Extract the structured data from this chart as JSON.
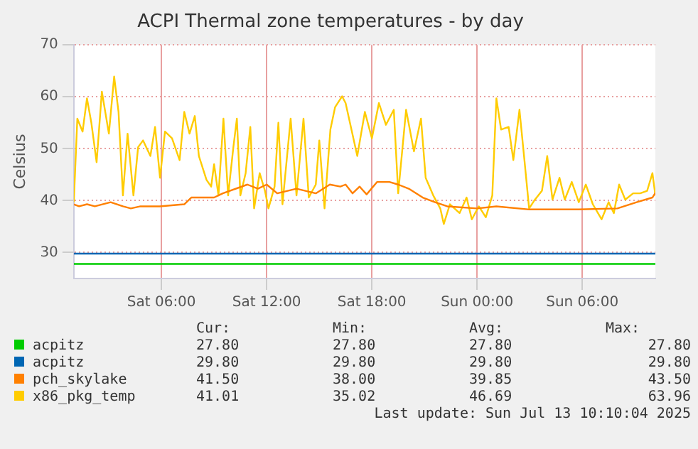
{
  "chart_data": {
    "type": "line",
    "title": "ACPI Thermal zone temperatures - by day",
    "ylabel": "Celsius",
    "xlim": [
      "2025-07-12T01:00",
      "2025-07-13T10:10"
    ],
    "xticks": [
      {
        "value": "2025-07-12T06:00",
        "label": "Sat 06:00"
      },
      {
        "value": "2025-07-12T12:00",
        "label": "Sat 12:00"
      },
      {
        "value": "2025-07-12T18:00",
        "label": "Sat 18:00"
      },
      {
        "value": "2025-07-13T00:00",
        "label": "Sun 00:00"
      },
      {
        "value": "2025-07-13T06:00",
        "label": "Sun 06:00"
      }
    ],
    "ylim": [
      25,
      70
    ],
    "yticks": [
      30,
      40,
      50,
      60,
      70
    ],
    "grid": true,
    "legend": "bottom",
    "marker": "none",
    "line_style": "solid",
    "series": [
      {
        "name": "acpitz",
        "color": "#00cc00",
        "x": [
          "2025-07-12T01:00",
          "2025-07-13T10:10"
        ],
        "values": [
          27.8,
          27.8
        ]
      },
      {
        "name": "acpitz",
        "color": "#0066b3",
        "x": [
          "2025-07-12T01:00",
          "2025-07-13T10:10"
        ],
        "values": [
          29.8,
          29.8
        ]
      },
      {
        "name": "pch_skylake",
        "color": "#ff8000",
        "x": [
          "2025-07-12T01:00",
          "2025-07-12T01:18",
          "2025-07-12T01:45",
          "2025-07-12T02:12",
          "2025-07-12T03:06",
          "2025-07-12T03:48",
          "2025-07-12T04:15",
          "2025-07-12T04:48",
          "2025-07-12T05:54",
          "2025-07-12T07:18",
          "2025-07-12T07:42",
          "2025-07-12T09:00",
          "2025-07-12T09:30",
          "2025-07-12T10:54",
          "2025-07-12T11:30",
          "2025-07-12T12:00",
          "2025-07-12T12:36",
          "2025-07-12T13:42",
          "2025-07-12T14:48",
          "2025-07-12T15:36",
          "2025-07-12T16:12",
          "2025-07-12T16:30",
          "2025-07-12T16:54",
          "2025-07-12T17:18",
          "2025-07-12T17:42",
          "2025-07-12T18:18",
          "2025-07-12T19:00",
          "2025-07-12T19:30",
          "2025-07-12T20:06",
          "2025-07-12T20:54",
          "2025-07-12T21:36",
          "2025-07-12T22:18",
          "2025-07-13T00:00",
          "2025-07-13T01:06",
          "2025-07-13T03:00",
          "2025-07-13T05:48",
          "2025-07-13T08:00",
          "2025-07-13T09:06",
          "2025-07-13T10:00",
          "2025-07-13T10:10"
        ],
        "values": [
          39.3,
          38.9,
          39.3,
          38.9,
          39.7,
          38.9,
          38.5,
          38.9,
          38.9,
          39.3,
          40.6,
          40.6,
          41.4,
          43.1,
          42.3,
          43.1,
          41.4,
          42.3,
          41.4,
          43.1,
          42.7,
          43.1,
          41.4,
          42.7,
          41.2,
          43.6,
          43.6,
          43.1,
          42.3,
          40.6,
          39.7,
          38.9,
          38.5,
          38.9,
          38.3,
          38.3,
          38.5,
          39.7,
          40.6,
          41.5
        ]
      },
      {
        "name": "x86_pkg_temp",
        "color": "#ffcc00",
        "x": [
          "2025-07-12T01:00",
          "2025-07-12T01:12",
          "2025-07-12T01:30",
          "2025-07-12T01:45",
          "2025-07-12T02:00",
          "2025-07-12T02:18",
          "2025-07-12T02:36",
          "2025-07-12T03:00",
          "2025-07-12T03:18",
          "2025-07-12T03:33",
          "2025-07-12T03:48",
          "2025-07-12T04:04",
          "2025-07-12T04:24",
          "2025-07-12T04:40",
          "2025-07-12T04:57",
          "2025-07-12T05:22",
          "2025-07-12T05:38",
          "2025-07-12T05:55",
          "2025-07-12T06:12",
          "2025-07-12T06:36",
          "2025-07-12T07:02",
          "2025-07-12T07:18",
          "2025-07-12T07:36",
          "2025-07-12T07:54",
          "2025-07-12T08:08",
          "2025-07-12T08:34",
          "2025-07-12T08:50",
          "2025-07-12T09:00",
          "2025-07-12T09:15",
          "2025-07-12T09:32",
          "2025-07-12T09:48",
          "2025-07-12T10:06",
          "2025-07-12T10:18",
          "2025-07-12T10:30",
          "2025-07-12T10:48",
          "2025-07-12T11:04",
          "2025-07-12T11:17",
          "2025-07-12T11:36",
          "2025-07-12T11:54",
          "2025-07-12T12:06",
          "2025-07-12T12:27",
          "2025-07-12T12:40",
          "2025-07-12T12:54",
          "2025-07-12T13:22",
          "2025-07-12T13:42",
          "2025-07-12T14:06",
          "2025-07-12T14:24",
          "2025-07-12T14:48",
          "2025-07-12T15:00",
          "2025-07-12T15:18",
          "2025-07-12T15:38",
          "2025-07-12T15:54",
          "2025-07-12T16:18",
          "2025-07-12T16:30",
          "2025-07-12T17:10",
          "2025-07-12T17:36",
          "2025-07-12T18:00",
          "2025-07-12T18:24",
          "2025-07-12T18:48",
          "2025-07-12T19:15",
          "2025-07-12T19:30",
          "2025-07-12T19:57",
          "2025-07-12T20:24",
          "2025-07-12T20:48",
          "2025-07-12T21:04",
          "2025-07-12T21:30",
          "2025-07-12T21:54",
          "2025-07-12T22:06",
          "2025-07-12T22:27",
          "2025-07-12T23:00",
          "2025-07-12T23:24",
          "2025-07-12T23:42",
          "2025-07-13T00:06",
          "2025-07-13T00:30",
          "2025-07-13T00:52",
          "2025-07-13T01:06",
          "2025-07-13T01:22",
          "2025-07-13T01:48",
          "2025-07-13T02:04",
          "2025-07-13T02:25",
          "2025-07-13T02:42",
          "2025-07-13T02:58",
          "2025-07-13T03:18",
          "2025-07-13T03:42",
          "2025-07-13T04:00",
          "2025-07-13T04:18",
          "2025-07-13T04:42",
          "2025-07-13T05:00",
          "2025-07-13T05:24",
          "2025-07-13T05:48",
          "2025-07-13T06:12",
          "2025-07-13T06:36",
          "2025-07-13T07:06",
          "2025-07-13T07:30",
          "2025-07-13T07:48",
          "2025-07-13T08:06",
          "2025-07-13T08:27",
          "2025-07-13T08:54",
          "2025-07-13T09:18",
          "2025-07-13T09:42",
          "2025-07-13T10:00",
          "2025-07-13T10:10"
        ],
        "values": [
          39.7,
          55.8,
          53.3,
          59.7,
          55,
          47.4,
          61,
          52.9,
          63.9,
          57.1,
          41,
          52.9,
          41,
          50.3,
          51.6,
          48.6,
          54.2,
          44.4,
          53.3,
          52,
          47.8,
          57.1,
          52.9,
          56.3,
          48.6,
          44,
          42.7,
          47,
          41,
          55.8,
          41,
          50.3,
          55.8,
          41,
          45.3,
          54.2,
          38.5,
          45.3,
          41.9,
          38.5,
          42.7,
          55,
          39.3,
          55.8,
          41,
          55.8,
          40.6,
          43.1,
          51.6,
          38.5,
          53.7,
          58,
          60.1,
          58.8,
          48.6,
          57.1,
          52,
          58.8,
          54.6,
          57.5,
          41.4,
          57.5,
          49.5,
          55.8,
          44.4,
          41,
          38.5,
          35.5,
          39.3,
          37.6,
          40.6,
          36.4,
          38.9,
          36.8,
          41,
          59.7,
          53.7,
          54.2,
          47.8,
          57.5,
          47.8,
          38.5,
          40.2,
          41.9,
          48.6,
          40.2,
          44.4,
          40.2,
          43.6,
          39.7,
          43.1,
          39.3,
          36.4,
          39.7,
          37.6,
          43.1,
          40.2,
          41.4,
          41.4,
          41.9,
          45.3,
          41.0
        ]
      }
    ],
    "annotations": [
      "Cur:",
      "Min:",
      "Avg:",
      "Max:",
      "27.80",
      "27.80",
      "27.80",
      "27.80",
      "29.80",
      "29.80",
      "29.80",
      "29.80",
      "41.50",
      "38.00",
      "39.85",
      "43.50",
      "41.01",
      "35.02",
      "46.69",
      "63.96",
      "Last update: Sun Jul 13 10:10:04 2025"
    ]
  }
}
